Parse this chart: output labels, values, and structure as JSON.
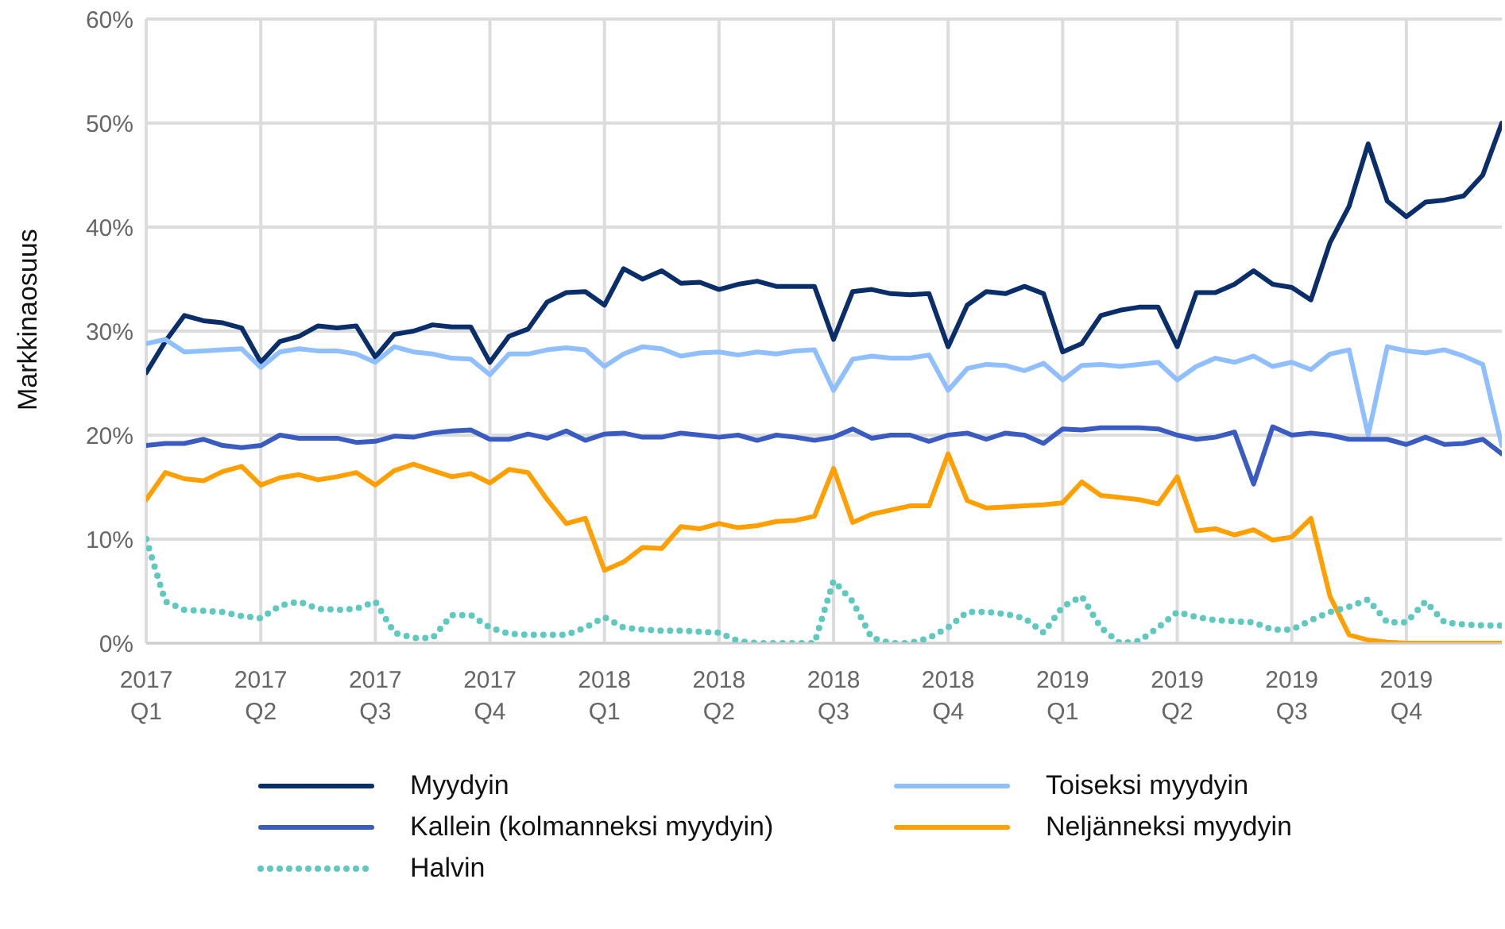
{
  "chart_data": {
    "type": "line",
    "ylabel": "Markkinaosuus",
    "categories": [
      "2017 Q1",
      null,
      null,
      null,
      null,
      null,
      "2017 Q2",
      null,
      null,
      null,
      null,
      null,
      "2017 Q3",
      null,
      null,
      null,
      null,
      null,
      "2017 Q4",
      null,
      null,
      null,
      null,
      null,
      "2018 Q1",
      null,
      null,
      null,
      null,
      null,
      "2018 Q2",
      null,
      null,
      null,
      null,
      null,
      "2018 Q3",
      null,
      null,
      null,
      null,
      null,
      "2018 Q4",
      null,
      null,
      null,
      null,
      null,
      "2019 Q1",
      null,
      null,
      null,
      null,
      null,
      "2019 Q2",
      null,
      null,
      null,
      null,
      null,
      "2019 Q3",
      null,
      null,
      null,
      null,
      null,
      "2019 Q4",
      null,
      null,
      null,
      null,
      null
    ],
    "series": [
      {
        "name": "Myydyin",
        "color": "#0a2e6a",
        "line_style": "solid",
        "values": [
          26,
          29,
          31.5,
          31,
          30.8,
          30.3,
          27,
          29,
          29.5,
          30.5,
          30.3,
          30.5,
          27.5,
          29.7,
          30,
          30.6,
          30.4,
          30.4,
          27,
          29.5,
          30.2,
          32.8,
          33.7,
          33.8,
          32.5,
          36,
          35,
          35.8,
          34.6,
          34.7,
          34,
          34.5,
          34.8,
          34.3,
          34.3,
          34.3,
          29.2,
          33.8,
          34,
          33.6,
          33.5,
          33.6,
          28.5,
          32.5,
          33.8,
          33.6,
          34.3,
          33.6,
          28,
          28.8,
          31.5,
          32,
          32.3,
          32.3,
          28.5,
          33.7,
          33.7,
          34.5,
          35.8,
          34.5,
          34.2,
          33,
          38.5,
          42,
          48,
          42.5,
          41,
          42.4,
          42.6,
          43,
          45,
          50
        ]
      },
      {
        "name": "Toiseksi myydyin",
        "color": "#8fbfff",
        "line_style": "solid",
        "values": [
          28.8,
          29.2,
          28,
          28.1,
          28.2,
          28.3,
          26.5,
          28,
          28.3,
          28.1,
          28.1,
          27.8,
          27,
          28.5,
          28,
          27.8,
          27.4,
          27.3,
          25.8,
          27.8,
          27.8,
          28.2,
          28.4,
          28.2,
          26.6,
          27.8,
          28.5,
          28.3,
          27.6,
          27.9,
          28,
          27.7,
          28,
          27.8,
          28.1,
          28.2,
          24.3,
          27.3,
          27.6,
          27.4,
          27.4,
          27.7,
          24.3,
          26.4,
          26.8,
          26.7,
          26.2,
          26.9,
          25.3,
          26.7,
          26.8,
          26.6,
          26.8,
          27,
          25.3,
          26.6,
          27.4,
          27,
          27.6,
          26.6,
          27,
          26.3,
          27.8,
          28.2,
          20,
          28.5,
          28.1,
          27.9,
          28.2,
          27.6,
          26.8,
          19
        ]
      },
      {
        "name": "Kallein (kolmanneksi myydyin)",
        "color": "#3a5bbf",
        "line_style": "solid",
        "values": [
          19,
          19.2,
          19.2,
          19.6,
          19,
          18.8,
          19,
          20,
          19.7,
          19.7,
          19.7,
          19.3,
          19.4,
          19.9,
          19.8,
          20.2,
          20.4,
          20.5,
          19.6,
          19.6,
          20.1,
          19.7,
          20.4,
          19.5,
          20.1,
          20.2,
          19.8,
          19.8,
          20.2,
          20,
          19.8,
          20,
          19.5,
          20,
          19.8,
          19.5,
          19.8,
          20.6,
          19.7,
          20,
          20,
          19.4,
          20,
          20.2,
          19.6,
          20.2,
          20,
          19.2,
          20.6,
          20.5,
          20.7,
          20.7,
          20.7,
          20.6,
          20,
          19.6,
          19.8,
          20.3,
          15.3,
          20.8,
          20,
          20.2,
          20,
          19.6,
          19.6,
          19.6,
          19.1,
          19.8,
          19.1,
          19.2,
          19.6,
          18.2
        ]
      },
      {
        "name": "Neljänneksi myydyin",
        "color": "#ffa000",
        "line_style": "solid",
        "values": [
          13.8,
          16.4,
          15.8,
          15.6,
          16.5,
          17,
          15.2,
          15.9,
          16.2,
          15.7,
          16,
          16.4,
          15.2,
          16.6,
          17.2,
          16.6,
          16,
          16.3,
          15.4,
          16.7,
          16.4,
          13.8,
          11.5,
          12,
          7,
          7.8,
          9.2,
          9.1,
          11.2,
          11,
          11.5,
          11.1,
          11.3,
          11.7,
          11.8,
          12.2,
          16.8,
          11.6,
          12.4,
          12.8,
          13.2,
          13.2,
          18.2,
          13.7,
          13,
          13.1,
          13.2,
          13.3,
          13.5,
          15.5,
          14.2,
          14,
          13.8,
          13.4,
          16,
          10.8,
          11,
          10.4,
          10.9,
          9.9,
          10.2,
          12,
          4.5,
          0.8,
          0.3,
          0.1,
          0,
          0,
          0,
          0,
          0,
          0
        ]
      },
      {
        "name": "Halvin",
        "color": "#5fc9c0",
        "line_style": "dotted",
        "values": [
          10,
          4,
          3.2,
          3.1,
          3,
          2.6,
          2.4,
          3.6,
          4,
          3.3,
          3.2,
          3.3,
          4,
          1,
          0.5,
          0.5,
          2.7,
          2.7,
          1.5,
          0.9,
          0.8,
          0.8,
          0.8,
          1.5,
          2.5,
          1.5,
          1.3,
          1.2,
          1.2,
          1.1,
          1,
          0.2,
          0,
          0,
          0,
          0,
          6,
          4,
          0.5,
          0,
          0,
          0.5,
          1.5,
          3,
          3,
          2.8,
          2.4,
          1,
          3.5,
          4.5,
          1.5,
          0,
          0.2,
          1.5,
          3,
          2.5,
          2.2,
          2.1,
          2,
          1.3,
          1.3,
          2.2,
          3,
          3.5,
          4.2,
          2,
          2,
          4,
          2,
          1.8,
          1.7,
          1.7
        ]
      }
    ],
    "ylim": [
      0,
      60
    ],
    "yticks": [
      {
        "value": 0,
        "label": "0%"
      },
      {
        "value": 10,
        "label": "10%"
      },
      {
        "value": 20,
        "label": "20%"
      },
      {
        "value": 30,
        "label": "30%"
      },
      {
        "value": 40,
        "label": "40%"
      },
      {
        "value": 50,
        "label": "50%"
      },
      {
        "value": 60,
        "label": "60%"
      }
    ],
    "grid": true,
    "legend": "bottom",
    "marker": "none"
  }
}
